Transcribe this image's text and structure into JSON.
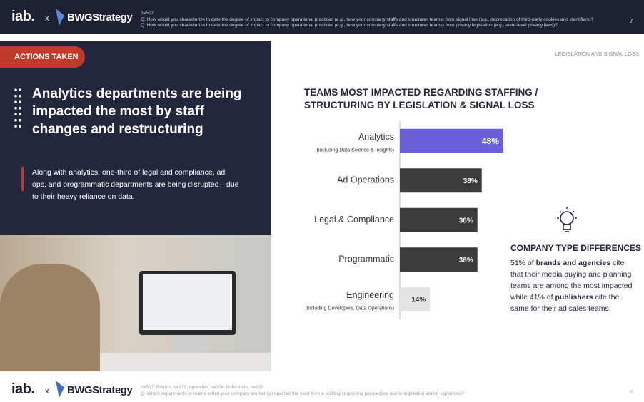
{
  "header": {
    "logo_left": "iab.",
    "logo_sep": "x",
    "logo_right": "BWGStrategy",
    "notes": [
      "n=507",
      "Q: How would you characterize to date the degree of impact to company operational practices (e.g., how your company staffs and structures teams) from signal loss (e.g., deprecation of third-party cookies and identifiers)?",
      "Q: How would you characterize to date the degree of impact to company operational practices (e.g., how your company staffs and structures teams) from privacy legislation (e.g., state-level privacy laws)?"
    ],
    "page": "7"
  },
  "sidebar": {
    "tag": "ACTIONS TAKEN",
    "heading": "Analytics departments are being impacted the most by staff changes and restructuring",
    "body": "Along with analytics, one-third of legal and compliance, ad ops, and programmatic departments are being disrupted—due to their heavy reliance on data."
  },
  "section_label": "LEGISLATION AND SIGNAL LOSS",
  "chart_data": {
    "type": "bar",
    "orientation": "horizontal",
    "title": "TEAMS MOST IMPACTED REGARDING STAFFING / STRUCTURING BY LEGISLATION & SIGNAL LOSS",
    "categories": [
      "Analytics",
      "Ad Operations",
      "Legal & Compliance",
      "Programmatic",
      "Engineering"
    ],
    "sublabels": [
      "(including Data Science & Insights)",
      null,
      null,
      null,
      "(including Developers, Data Operations)"
    ],
    "values": [
      48,
      38,
      36,
      36,
      14
    ],
    "value_labels": [
      "48%",
      "38%",
      "36%",
      "36%",
      "14%"
    ],
    "colors": [
      "#6a5fd6",
      "#3b3b3b",
      "#3b3b3b",
      "#3b3b3b",
      "#e4e4e4"
    ]
  },
  "callout": {
    "title": "COMPANY TYPE DIFFERENCES",
    "runs": [
      {
        "text": "51% of ",
        "bold": false
      },
      {
        "text": "brands and agencies",
        "bold": true
      },
      {
        "text": " cite that their media buying and planning teams are among the most impacted while 41% of ",
        "bold": false
      },
      {
        "text": "publishers",
        "bold": true
      },
      {
        "text": " cite the same for their ad sales teams.",
        "bold": false
      }
    ]
  },
  "footer": {
    "logo_left": "iab.",
    "logo_sep": "x",
    "logo_right": "BWGStrategy",
    "notes": [
      "n=507; Brands, n=170; Agencies, n=204; Publishers, n=133",
      "Q: Which departments or teams within your company are being impacted the most from a staffing/structuring perspective due to legislation and/or signal loss?"
    ],
    "page": "8"
  }
}
